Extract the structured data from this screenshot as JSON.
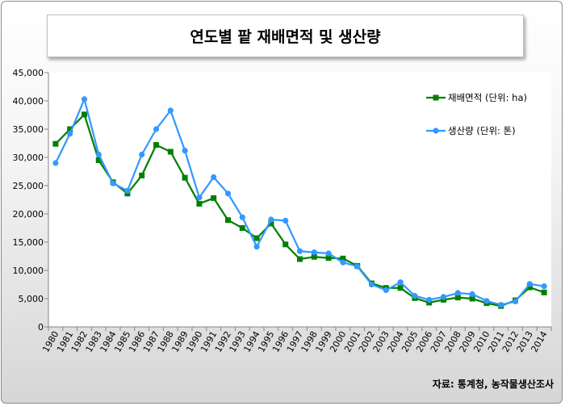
{
  "chart_data": {
    "type": "line",
    "title": "연도별 팥 재배면적 및 생산량",
    "source": "자료: 통계청, 농작물생산조사",
    "categories": [
      "1980",
      "1981",
      "1982",
      "1983",
      "1984",
      "1985",
      "1986",
      "1987",
      "1988",
      "1989",
      "1990",
      "1991",
      "1992",
      "1993",
      "1994",
      "1995",
      "1996",
      "1997",
      "1998",
      "1999",
      "2000",
      "2001",
      "2002",
      "2003",
      "2004",
      "2005",
      "2006",
      "2007",
      "2008",
      "2009",
      "2010",
      "2011",
      "2012",
      "2013",
      "2014"
    ],
    "y_ticks": [
      "0",
      "5,000",
      "10,000",
      "15,000",
      "20,000",
      "25,000",
      "30,000",
      "35,000",
      "40,000",
      "45,000"
    ],
    "ylim": [
      0,
      45000
    ],
    "legend_position": "right",
    "grid": false,
    "series": [
      {
        "name": "재배면적 (단위: ha)",
        "color": "#008000",
        "marker": "square",
        "values": [
          32400,
          35000,
          37600,
          29500,
          25600,
          23600,
          26800,
          32200,
          31000,
          26400,
          21800,
          22800,
          18900,
          17500,
          15700,
          18300,
          14600,
          12000,
          12400,
          12200,
          12100,
          10800,
          7700,
          6900,
          6900,
          5100,
          4300,
          4800,
          5200,
          5000,
          4200,
          3700,
          4700,
          7000,
          6100
        ]
      },
      {
        "name": "생산량 (단위: 톤)",
        "color": "#3399ff",
        "marker": "circle",
        "values": [
          29000,
          34200,
          40300,
          30500,
          25400,
          24100,
          30500,
          35000,
          38300,
          31200,
          22900,
          26500,
          23600,
          19400,
          14200,
          19000,
          18800,
          13400,
          13200,
          13000,
          11400,
          10700,
          7500,
          6500,
          7900,
          5500,
          4800,
          5300,
          6000,
          5800,
          4600,
          3900,
          4500,
          7600,
          7200
        ]
      }
    ]
  }
}
